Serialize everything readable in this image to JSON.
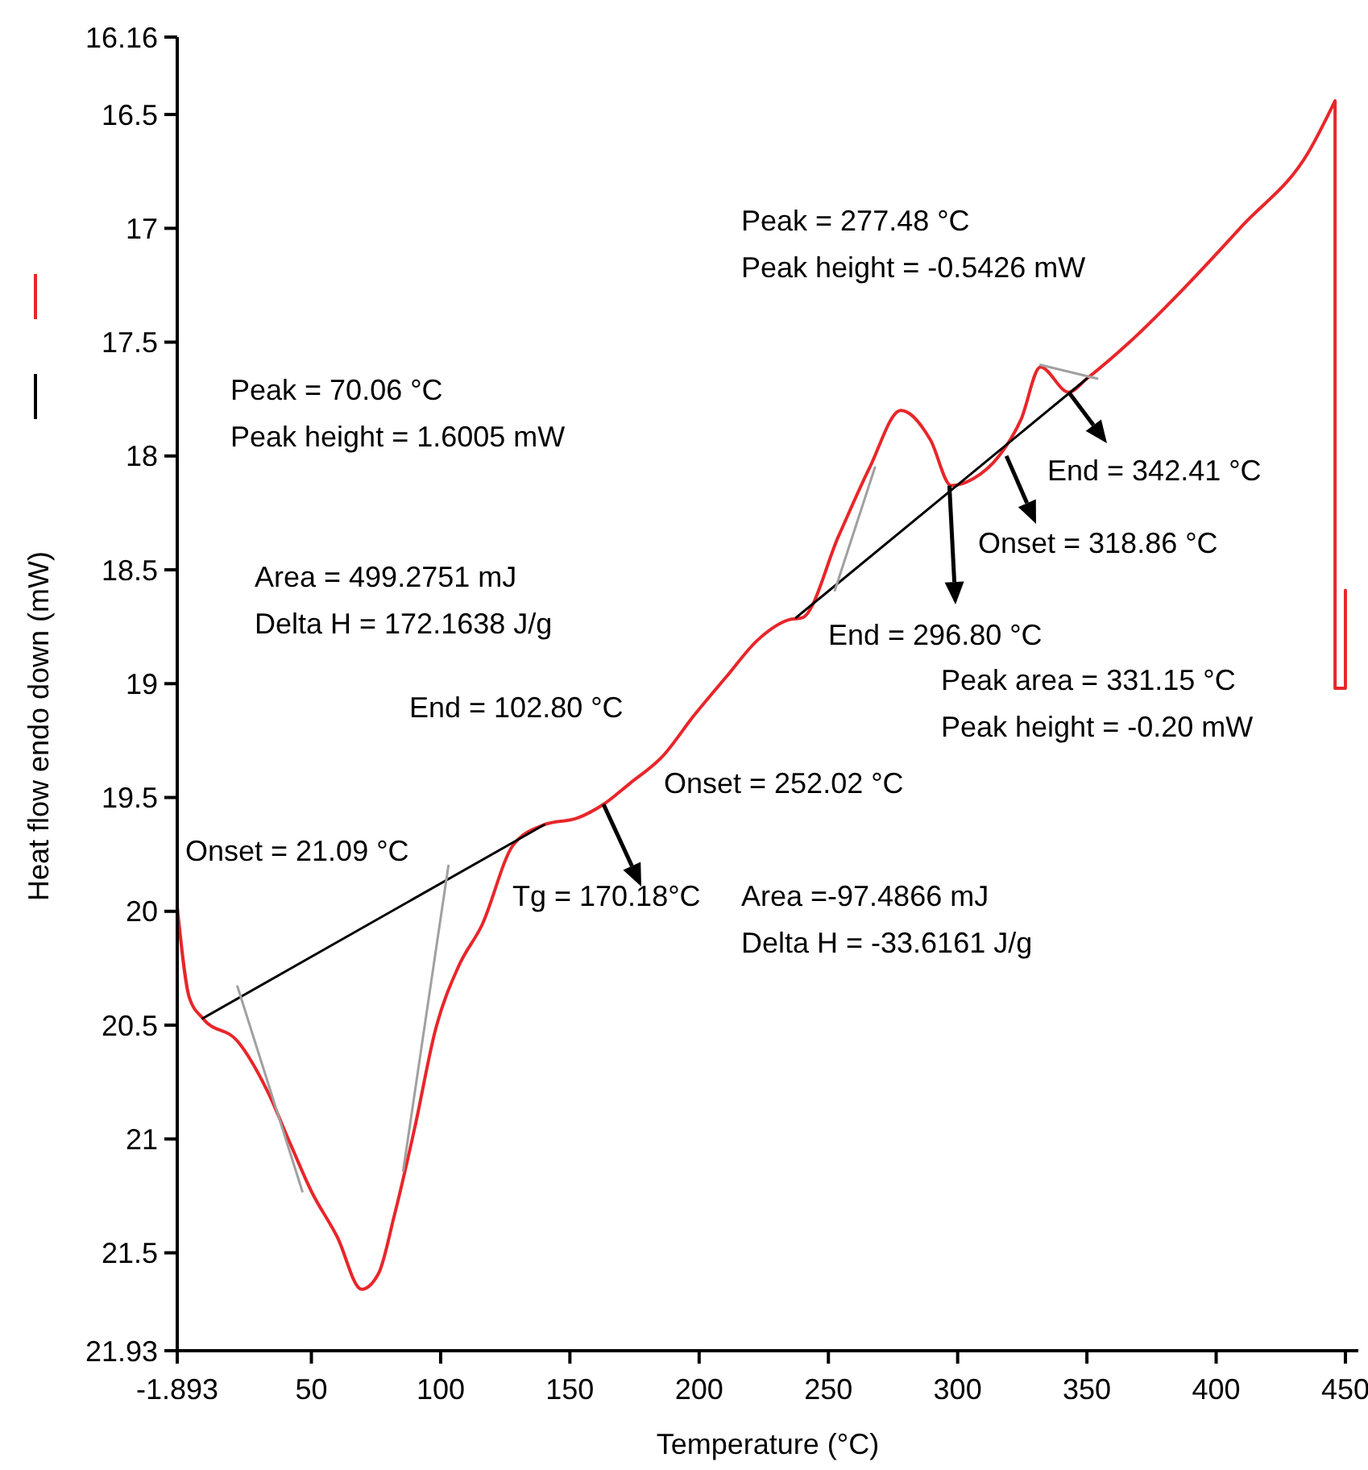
{
  "chart_data": {
    "type": "line",
    "xlabel": "Temperature (°C)",
    "ylabel": "Heat flow endo down (mW)",
    "xlim": [
      -1.893,
      455
    ],
    "xticks": [
      -1.893,
      50,
      100,
      150,
      200,
      250,
      300,
      350,
      400,
      450
    ],
    "ylim": [
      21.93,
      16.16
    ],
    "yticks": [
      16.16,
      16.5,
      17,
      17.5,
      18,
      18.5,
      19,
      19.5,
      20,
      20.5,
      21,
      21.5,
      21.93
    ],
    "grid": false,
    "marker": "none",
    "line_style": "solid",
    "series": [
      {
        "color": "#e8262a",
        "x": [
          -1.893,
          2.8,
          8,
          21.4,
          33,
          41.8,
          50,
          60,
          69.4,
          76,
          82,
          90,
          98,
          107,
          116,
          128,
          140,
          153,
          163,
          173,
          185.8,
          198,
          210.5,
          222.5,
          234.6,
          240,
          254,
          266,
          278,
          289.5,
          297.5,
          306,
          316,
          324.5,
          332,
          343,
          350,
          366.5,
          387,
          410,
          436,
          446,
          446,
          450,
          450
        ],
        "values": [
          19.98,
          20.38,
          20.47,
          20.57,
          20.79,
          21.02,
          21.23,
          21.43,
          21.66,
          21.59,
          21.34,
          20.95,
          20.52,
          20.24,
          20.06,
          19.71,
          19.62,
          19.59,
          19.53,
          19.44,
          19.32,
          19.14,
          18.97,
          18.81,
          18.72,
          18.71,
          18.35,
          18.05,
          17.8,
          17.93,
          18.13,
          18.1,
          18.0,
          17.84,
          17.61,
          17.72,
          17.66,
          17.5,
          17.27,
          16.99,
          16.66,
          16.44,
          19.02,
          19.02,
          18.59
        ]
      },
      {
        "color": "#000000",
        "x": [
          8,
          140,
          190,
          237.5,
          350
        ],
        "values": [
          20.47,
          19.62,
          null,
          18.71,
          17.66
        ]
      },
      {
        "color": "#a0a0a0",
        "x": [
          21.4,
          46.5,
          60,
          103,
          85.5,
          180,
          252.5,
          268,
          300,
          332,
          354
        ],
        "values": [
          20.33,
          21.23,
          null,
          19.8,
          21.14,
          null,
          18.59,
          18.05,
          null,
          17.6,
          17.66
        ]
      }
    ],
    "annotations": [
      "Peak = 277.48 °C",
      "Peak height = -0.5426 mW",
      "Peak = 70.06 °C",
      "Peak height = 1.6005 mW",
      "Area = 499.2751 mJ",
      "Delta H = 172.1638 J/g",
      "End = 102.80 °C",
      {
        "text": "End = 342.41 °C",
        "x": 343,
        "y": 17.72
      },
      {
        "text": "Onset = 318.86 °C",
        "x": 318.86,
        "y": 18.0
      },
      {
        "text": "End = 296.80 °C",
        "x": 296.8,
        "y": 18.13
      },
      "Peak area = 331.15 °C",
      "Peak height = -0.20 mW",
      "Onset = 252.02 °C",
      "Onset = 21.09 °C",
      {
        "text": "Tg = 170.18°C",
        "x": 163,
        "y": 19.53
      },
      "Area =-97.4866 mJ",
      "Delta H = -33.6161 J/g"
    ]
  }
}
